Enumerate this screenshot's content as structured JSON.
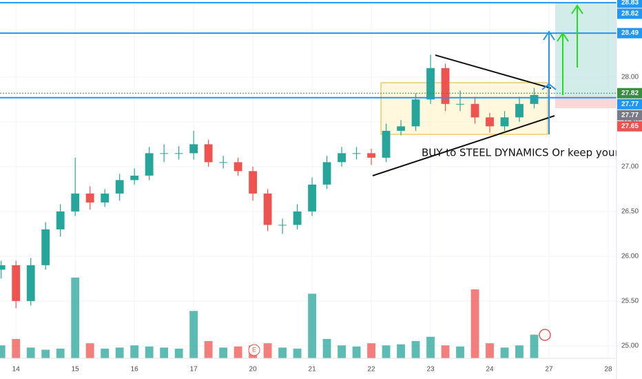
{
  "chart_data": {
    "type": "candlestick",
    "annotation": "BUY to STEEL DYNAMICS Or keep your in por",
    "earnings_marker": "E",
    "xlim": [
      -0.27,
      10.14
    ],
    "xticks": [
      {
        "value": 0,
        "label": "14"
      },
      {
        "value": 1,
        "label": "15"
      },
      {
        "value": 2,
        "label": "16"
      },
      {
        "value": 3,
        "label": "17"
      },
      {
        "value": 4,
        "label": "20"
      },
      {
        "value": 5,
        "label": "21"
      },
      {
        "value": 6,
        "label": "22"
      },
      {
        "value": 7,
        "label": "23"
      },
      {
        "value": 8,
        "label": "24"
      },
      {
        "value": 9,
        "label": "27"
      },
      {
        "value": 10,
        "label": "28"
      }
    ],
    "ylim": [
      24.63,
      28.86
    ],
    "yticks": [
      {
        "value": 25,
        "label": "25.00"
      },
      {
        "value": 25.5,
        "label": "25.50"
      },
      {
        "value": 26,
        "label": "26.00"
      },
      {
        "value": 26.5,
        "label": "26.50"
      },
      {
        "value": 27,
        "label": "27.00"
      },
      {
        "value": 27.5,
        "label": "27.50"
      },
      {
        "value": 28,
        "label": "28.00"
      }
    ],
    "price_levels": [
      {
        "value": 28.83,
        "label": "28.83",
        "color": "#2196f3",
        "line": "solid"
      },
      {
        "value": 28.82,
        "label": "28.82",
        "color": "#2196f3",
        "line": "none"
      },
      {
        "value": 28.49,
        "label": "28.49",
        "color": "#2196f3",
        "line": "solid"
      },
      {
        "value": 27.82,
        "label": "27.82",
        "color": "#388e3c",
        "line": "dotted"
      },
      {
        "value": 27.77,
        "label": "27.77",
        "color": "#2196f3",
        "line": "solid"
      },
      {
        "value": 27.77,
        "label": "27.77",
        "color": "#787b86",
        "line": "none"
      },
      {
        "value": 27.65,
        "label": "27.65",
        "color": "#ef5350",
        "line": "none"
      }
    ],
    "up_color": "#26a69a",
    "down_color": "#ef5350",
    "x": [
      -0.25,
      0,
      0.25,
      0.5,
      0.75,
      1,
      1.25,
      1.5,
      1.75,
      2,
      2.25,
      2.5,
      2.75,
      3,
      3.25,
      3.5,
      3.75,
      4,
      4.25,
      4.5,
      4.75,
      5,
      5.25,
      5.5,
      5.75,
      6,
      6.25,
      6.5,
      6.75,
      7,
      7.25,
      7.5,
      7.75,
      8,
      8.25,
      8.5,
      8.75
    ],
    "open": [
      25.85,
      25.9,
      25.5,
      25.9,
      26.3,
      26.5,
      26.7,
      26.6,
      26.7,
      26.85,
      26.9,
      27.15,
      27.15,
      27.15,
      27.25,
      27.05,
      27.05,
      26.95,
      26.7,
      26.35,
      26.35,
      26.5,
      26.8,
      27.05,
      27.15,
      27.15,
      27.1,
      27.4,
      27.45,
      27.75,
      28.1,
      27.7,
      27.7,
      27.55,
      27.45,
      27.55,
      27.7
    ],
    "high": [
      25.95,
      25.95,
      25.98,
      26.38,
      26.58,
      27.1,
      26.78,
      26.75,
      26.92,
      26.98,
      27.22,
      27.25,
      27.23,
      27.4,
      27.3,
      27.12,
      27.1,
      27.0,
      26.75,
      26.42,
      26.58,
      26.88,
      27.12,
      27.22,
      27.22,
      27.2,
      27.48,
      27.52,
      27.82,
      28.25,
      28.15,
      27.85,
      27.78,
      27.6,
      27.62,
      27.78,
      27.88
    ],
    "low": [
      25.75,
      25.42,
      25.45,
      25.85,
      26.22,
      26.45,
      26.52,
      26.55,
      26.62,
      26.8,
      26.85,
      27.05,
      27.08,
      27.08,
      27.0,
      26.98,
      26.9,
      26.62,
      26.28,
      26.25,
      26.3,
      26.45,
      26.75,
      27.0,
      27.08,
      27.02,
      27.05,
      27.35,
      27.4,
      27.7,
      27.62,
      27.62,
      27.48,
      27.38,
      27.4,
      27.5,
      27.65
    ],
    "close": [
      25.9,
      25.5,
      25.9,
      26.3,
      26.5,
      26.7,
      26.6,
      26.7,
      26.85,
      26.9,
      27.15,
      27.15,
      27.15,
      27.25,
      27.05,
      27.05,
      26.95,
      26.7,
      26.35,
      26.35,
      26.5,
      26.8,
      27.05,
      27.15,
      27.15,
      27.1,
      27.4,
      27.45,
      27.75,
      28.1,
      27.7,
      27.7,
      27.55,
      27.45,
      27.55,
      27.7,
      27.8
    ],
    "vlim": [
      0,
      400
    ],
    "volume": [
      60,
      90,
      50,
      40,
      45,
      375,
      70,
      45,
      50,
      60,
      55,
      50,
      45,
      220,
      80,
      50,
      55,
      60,
      70,
      50,
      45,
      300,
      90,
      60,
      55,
      70,
      60,
      65,
      80,
      100,
      60,
      55,
      320,
      70,
      50,
      60,
      110
    ]
  }
}
